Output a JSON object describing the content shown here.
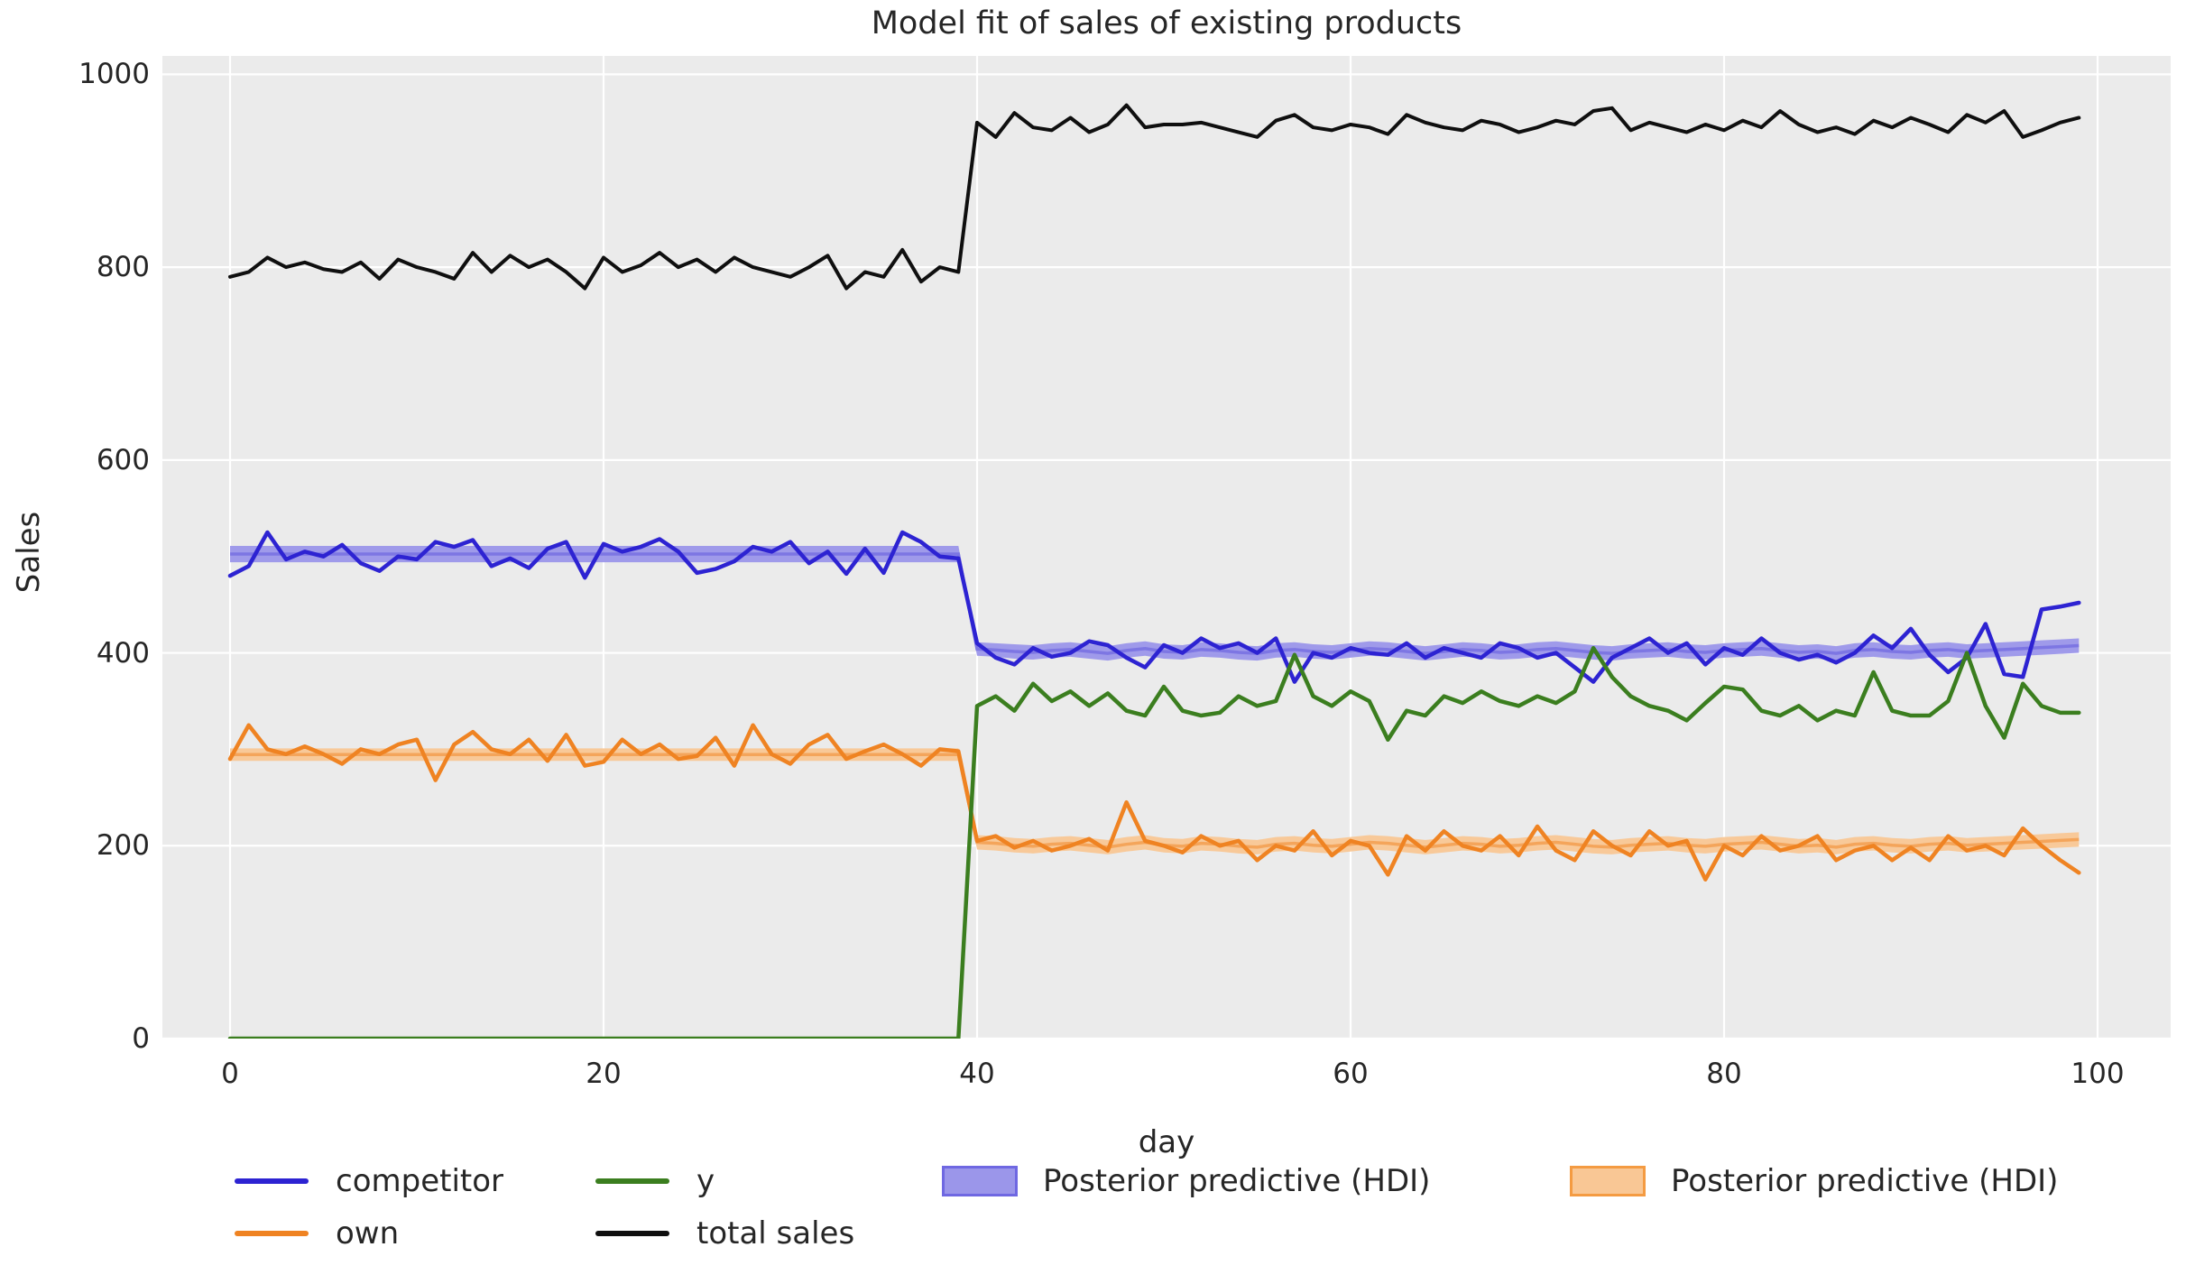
{
  "chart_data": {
    "type": "line",
    "title": "Model fit of sales of existing products",
    "xlabel": "day",
    "ylabel": "Sales",
    "xlim": [
      -3.6,
      103.9
    ],
    "ylim": [
      0,
      1019
    ],
    "xticks": [
      0,
      20,
      40,
      60,
      80,
      100
    ],
    "yticks": [
      0,
      200,
      400,
      600,
      800,
      1000
    ],
    "grid": true,
    "plot_background": "#ebebeb",
    "gridline_color": "#ffffff",
    "text_color": "#262626",
    "legend_position": "below-plot, 2 rows",
    "x": [
      0,
      1,
      2,
      3,
      4,
      5,
      6,
      7,
      8,
      9,
      10,
      11,
      12,
      13,
      14,
      15,
      16,
      17,
      18,
      19,
      20,
      21,
      22,
      23,
      24,
      25,
      26,
      27,
      28,
      29,
      30,
      31,
      32,
      33,
      34,
      35,
      36,
      37,
      38,
      39,
      40,
      41,
      42,
      43,
      44,
      45,
      46,
      47,
      48,
      49,
      50,
      51,
      52,
      53,
      54,
      55,
      56,
      57,
      58,
      59,
      60,
      61,
      62,
      63,
      64,
      65,
      66,
      67,
      68,
      69,
      70,
      71,
      72,
      73,
      74,
      75,
      76,
      77,
      78,
      79,
      80,
      81,
      82,
      83,
      84,
      85,
      86,
      87,
      88,
      89,
      90,
      91,
      92,
      93,
      94,
      95,
      96,
      97,
      98,
      99
    ],
    "series": [
      {
        "name": "competitor",
        "color": "#2d23d2",
        "width": 4.5,
        "values": [
          480,
          490,
          525,
          497,
          505,
          500,
          512,
          493,
          485,
          500,
          497,
          515,
          510,
          517,
          490,
          498,
          488,
          508,
          515,
          478,
          513,
          505,
          510,
          518,
          505,
          483,
          487,
          495,
          510,
          505,
          515,
          493,
          505,
          482,
          508,
          483,
          525,
          515,
          500,
          498,
          410,
          395,
          388,
          405,
          396,
          400,
          412,
          408,
          395,
          385,
          408,
          400,
          415,
          405,
          410,
          400,
          415,
          370,
          400,
          395,
          405,
          400,
          398,
          410,
          395,
          405,
          400,
          395,
          410,
          405,
          395,
          400,
          385,
          370,
          395,
          405,
          415,
          400,
          410,
          388,
          405,
          398,
          415,
          400,
          393,
          398,
          390,
          400,
          418,
          405,
          425,
          398,
          380,
          395,
          430,
          378,
          375,
          445,
          448,
          452
        ]
      },
      {
        "name": "own",
        "color": "#ef8322",
        "width": 4.5,
        "values": [
          290,
          325,
          300,
          295,
          303,
          295,
          285,
          300,
          295,
          305,
          310,
          268,
          305,
          318,
          300,
          295,
          310,
          288,
          315,
          283,
          287,
          310,
          295,
          305,
          290,
          293,
          312,
          283,
          325,
          295,
          285,
          305,
          315,
          290,
          298,
          305,
          295,
          283,
          300,
          298,
          205,
          210,
          198,
          205,
          195,
          200,
          207,
          195,
          245,
          205,
          200,
          193,
          210,
          200,
          205,
          185,
          200,
          195,
          215,
          190,
          205,
          200,
          170,
          210,
          195,
          215,
          200,
          195,
          210,
          190,
          220,
          195,
          185,
          215,
          200,
          190,
          215,
          200,
          205,
          165,
          200,
          190,
          210,
          195,
          200,
          210,
          185,
          195,
          200,
          185,
          198,
          185,
          210,
          195,
          200,
          190,
          218,
          200,
          185,
          172
        ]
      },
      {
        "name": "y",
        "color": "#3b7e1f",
        "width": 4.5,
        "values": [
          0,
          0,
          0,
          0,
          0,
          0,
          0,
          0,
          0,
          0,
          0,
          0,
          0,
          0,
          0,
          0,
          0,
          0,
          0,
          0,
          0,
          0,
          0,
          0,
          0,
          0,
          0,
          0,
          0,
          0,
          0,
          0,
          0,
          0,
          0,
          0,
          0,
          0,
          0,
          0,
          345,
          355,
          340,
          368,
          350,
          360,
          345,
          358,
          340,
          335,
          365,
          340,
          335,
          338,
          355,
          345,
          350,
          398,
          355,
          345,
          360,
          350,
          310,
          340,
          335,
          355,
          348,
          360,
          350,
          345,
          355,
          348,
          360,
          405,
          375,
          355,
          345,
          340,
          330,
          348,
          365,
          362,
          340,
          335,
          345,
          330,
          340,
          335,
          380,
          340,
          335,
          335,
          350,
          400,
          345,
          312,
          368,
          345,
          338,
          338
        ]
      },
      {
        "name": "total sales",
        "color": "#0f0f0f",
        "width": 4,
        "values": [
          790,
          795,
          810,
          800,
          805,
          798,
          795,
          805,
          788,
          808,
          800,
          795,
          788,
          815,
          795,
          812,
          800,
          808,
          795,
          778,
          810,
          795,
          802,
          815,
          800,
          808,
          795,
          810,
          800,
          795,
          790,
          800,
          812,
          778,
          795,
          790,
          818,
          785,
          800,
          795,
          950,
          935,
          960,
          945,
          942,
          955,
          940,
          948,
          968,
          945,
          948,
          948,
          950,
          945,
          940,
          935,
          952,
          958,
          945,
          942,
          948,
          945,
          938,
          958,
          950,
          945,
          942,
          952,
          948,
          940,
          945,
          952,
          948,
          962,
          965,
          942,
          950,
          945,
          940,
          948,
          942,
          952,
          945,
          962,
          948,
          940,
          945,
          938,
          952,
          945,
          955,
          948,
          940,
          958,
          950,
          962,
          935,
          942,
          950,
          955
        ]
      }
    ],
    "bands": [
      {
        "name": "Posterior predictive (HDI)",
        "fill": "#9b96ea",
        "mid_line": "#7d76e3",
        "lower": [
          494,
          494,
          494,
          494,
          494,
          494,
          494,
          494,
          494,
          494,
          494,
          494,
          494,
          494,
          494,
          494,
          494,
          494,
          494,
          494,
          494,
          494,
          494,
          494,
          494,
          494,
          494,
          494,
          494,
          494,
          494,
          494,
          494,
          494,
          494,
          494,
          494,
          494,
          494,
          494,
          397,
          396,
          394,
          393,
          395,
          396,
          394,
          392,
          395,
          397,
          394,
          393,
          396,
          395,
          393,
          392,
          395,
          396,
          394,
          393,
          395,
          397,
          396,
          394,
          392,
          394,
          396,
          395,
          393,
          394,
          396,
          397,
          395,
          393,
          392,
          394,
          395,
          396,
          394,
          393,
          395,
          396,
          397,
          395,
          393,
          394,
          392,
          395,
          396,
          394,
          393,
          395,
          396,
          394,
          395,
          396,
          397,
          398,
          399,
          400
        ],
        "upper": [
          511,
          511,
          511,
          511,
          511,
          511,
          511,
          511,
          511,
          511,
          511,
          511,
          511,
          511,
          511,
          511,
          511,
          511,
          511,
          511,
          511,
          511,
          511,
          511,
          511,
          511,
          511,
          511,
          511,
          511,
          511,
          511,
          511,
          511,
          511,
          511,
          511,
          511,
          511,
          511,
          411,
          410,
          409,
          408,
          410,
          411,
          409,
          407,
          410,
          412,
          409,
          408,
          411,
          410,
          408,
          407,
          410,
          411,
          409,
          408,
          410,
          412,
          411,
          409,
          407,
          409,
          411,
          410,
          408,
          409,
          411,
          412,
          410,
          408,
          407,
          409,
          410,
          411,
          409,
          408,
          410,
          411,
          412,
          410,
          408,
          409,
          407,
          410,
          411,
          409,
          408,
          410,
          411,
          409,
          410,
          411,
          412,
          413,
          414,
          415
        ]
      },
      {
        "name": "Posterior predictive (HDI)",
        "fill": "#f9c795",
        "mid_line": "#f4a55b",
        "lower": [
          288,
          288,
          288,
          288,
          288,
          288,
          288,
          288,
          288,
          288,
          288,
          288,
          288,
          288,
          288,
          288,
          288,
          288,
          288,
          288,
          288,
          288,
          288,
          288,
          288,
          288,
          288,
          288,
          288,
          288,
          288,
          288,
          288,
          288,
          288,
          288,
          288,
          288,
          288,
          288,
          196,
          195,
          193,
          192,
          194,
          195,
          193,
          191,
          194,
          196,
          193,
          192,
          195,
          194,
          192,
          191,
          194,
          195,
          193,
          192,
          194,
          196,
          195,
          193,
          191,
          193,
          195,
          194,
          192,
          193,
          195,
          196,
          194,
          192,
          191,
          193,
          194,
          195,
          193,
          192,
          194,
          195,
          196,
          194,
          192,
          193,
          191,
          194,
          195,
          193,
          192,
          194,
          195,
          193,
          194,
          195,
          196,
          197,
          198,
          199
        ],
        "upper": [
          301,
          301,
          301,
          301,
          301,
          301,
          301,
          301,
          301,
          301,
          301,
          301,
          301,
          301,
          301,
          301,
          301,
          301,
          301,
          301,
          301,
          301,
          301,
          301,
          301,
          301,
          301,
          301,
          301,
          301,
          301,
          301,
          301,
          301,
          301,
          301,
          301,
          301,
          301,
          301,
          211,
          210,
          208,
          207,
          209,
          210,
          208,
          206,
          209,
          211,
          208,
          207,
          210,
          209,
          207,
          206,
          209,
          210,
          208,
          207,
          209,
          211,
          210,
          208,
          206,
          208,
          210,
          209,
          207,
          208,
          210,
          211,
          209,
          207,
          206,
          208,
          209,
          210,
          208,
          207,
          209,
          210,
          211,
          209,
          207,
          208,
          206,
          209,
          210,
          208,
          207,
          209,
          210,
          208,
          209,
          210,
          211,
          212,
          213,
          214
        ]
      }
    ],
    "legend": {
      "items": [
        {
          "label": "competitor",
          "swatch": "line",
          "color": "#2d23d2",
          "col": 0,
          "row": 0
        },
        {
          "label": "own",
          "swatch": "line",
          "color": "#ef8322",
          "col": 0,
          "row": 1
        },
        {
          "label": "y",
          "swatch": "line",
          "color": "#3b7e1f",
          "col": 1,
          "row": 0
        },
        {
          "label": "total sales",
          "swatch": "line",
          "color": "#0f0f0f",
          "col": 1,
          "row": 1
        },
        {
          "label": "Posterior predictive (HDI)",
          "swatch": "patch",
          "color": "#9b96ea",
          "border": "#6f68e2",
          "col": 2,
          "row": 0
        },
        {
          "label": "Posterior predictive (HDI)",
          "swatch": "patch",
          "color": "#f9c795",
          "border": "#f49b42",
          "col": 3,
          "row": 0
        }
      ]
    }
  }
}
